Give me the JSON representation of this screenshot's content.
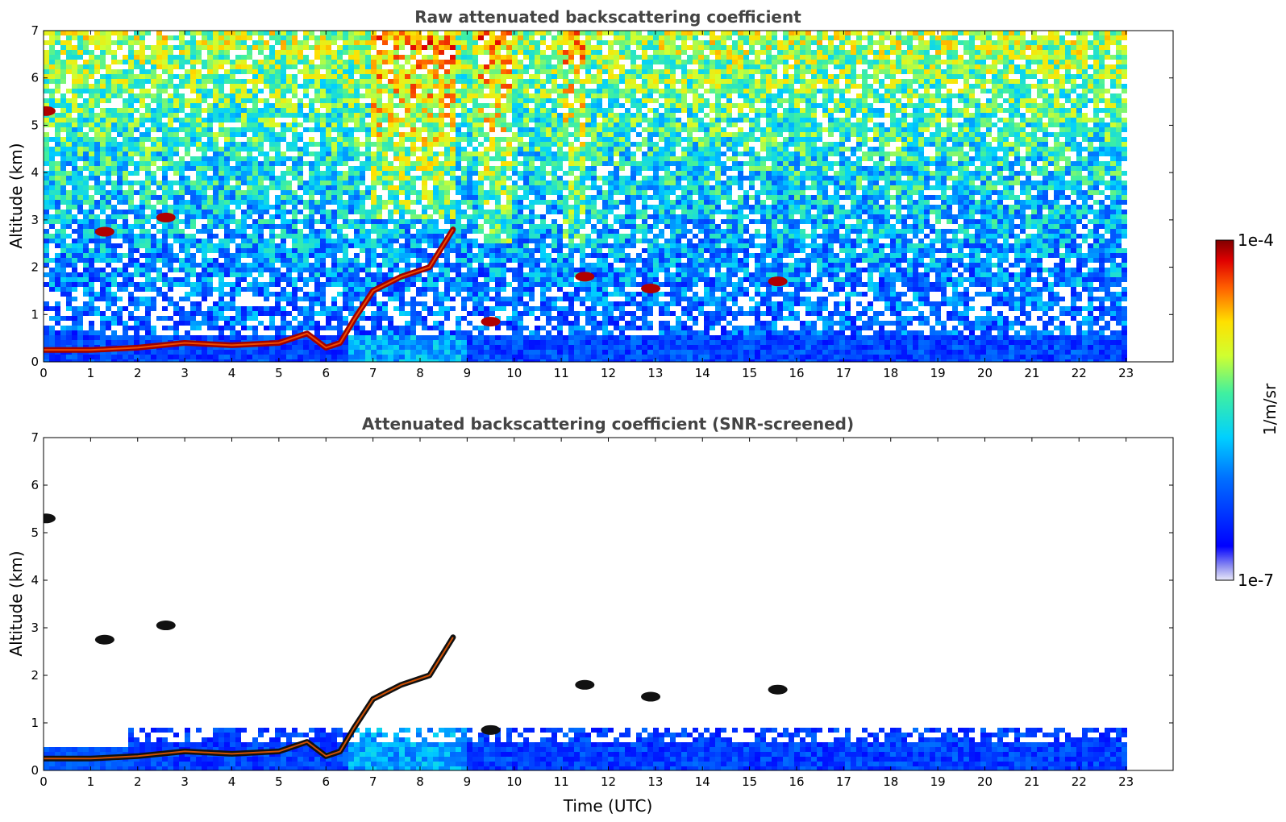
{
  "chart_data": [
    {
      "type": "heatmap",
      "title": "Raw attenuated backscattering coefficient",
      "xlabel": "",
      "ylabel": "Altitude (km)",
      "xlim": [
        0,
        24
      ],
      "ylim": [
        0,
        7
      ],
      "xticks": [
        "0",
        "1",
        "2",
        "3",
        "4",
        "5",
        "6",
        "7",
        "8",
        "9",
        "10",
        "11",
        "12",
        "13",
        "14",
        "15",
        "16",
        "17",
        "18",
        "19",
        "20",
        "21",
        "22",
        "23"
      ],
      "yticks": [
        "0",
        "1",
        "2",
        "3",
        "4",
        "5",
        "6",
        "7"
      ],
      "data_end_hour": 23,
      "noise_background": true,
      "features": [
        {
          "kind": "boundary_layer",
          "points": [
            [
              0,
              0.25
            ],
            [
              1,
              0.25
            ],
            [
              2,
              0.3
            ],
            [
              3,
              0.4
            ],
            [
              4,
              0.35
            ],
            [
              5,
              0.4
            ],
            [
              5.6,
              0.6
            ],
            [
              6,
              0.3
            ],
            [
              6.3,
              0.4
            ],
            [
              6.6,
              0.9
            ],
            [
              7,
              1.5
            ],
            [
              7.6,
              1.8
            ],
            [
              8.2,
              2.0
            ],
            [
              8.7,
              2.8
            ]
          ]
        },
        {
          "kind": "cloud",
          "x": 0.05,
          "y": 5.3
        },
        {
          "kind": "cloud",
          "x": 1.3,
          "y": 2.75
        },
        {
          "kind": "cloud",
          "x": 2.6,
          "y": 3.05
        },
        {
          "kind": "cloud",
          "x": 9.5,
          "y": 0.85
        },
        {
          "kind": "cloud",
          "x": 11.5,
          "y": 1.8
        },
        {
          "kind": "cloud",
          "x": 12.9,
          "y": 1.55
        },
        {
          "kind": "cloud",
          "x": 15.6,
          "y": 1.7
        }
      ]
    },
    {
      "type": "heatmap",
      "title": "Attenuated backscattering coefficient (SNR-screened)",
      "xlabel": "Time (UTC)",
      "ylabel": "Altitude (km)",
      "xlim": [
        0,
        24
      ],
      "ylim": [
        0,
        7
      ],
      "xticks": [
        "0",
        "1",
        "2",
        "3",
        "4",
        "5",
        "6",
        "7",
        "8",
        "9",
        "10",
        "11",
        "12",
        "13",
        "14",
        "15",
        "16",
        "17",
        "18",
        "19",
        "20",
        "21",
        "22",
        "23"
      ],
      "yticks": [
        "0",
        "1",
        "2",
        "3",
        "4",
        "5",
        "6",
        "7"
      ],
      "data_end_hour": 23,
      "noise_background": false
    }
  ],
  "colorbar": {
    "label": "1/m/sr",
    "max_label": "1e-4",
    "min_label": "1e-7",
    "scale": "log",
    "range": [
      1e-07,
      0.0001
    ],
    "colormap": "jet"
  }
}
